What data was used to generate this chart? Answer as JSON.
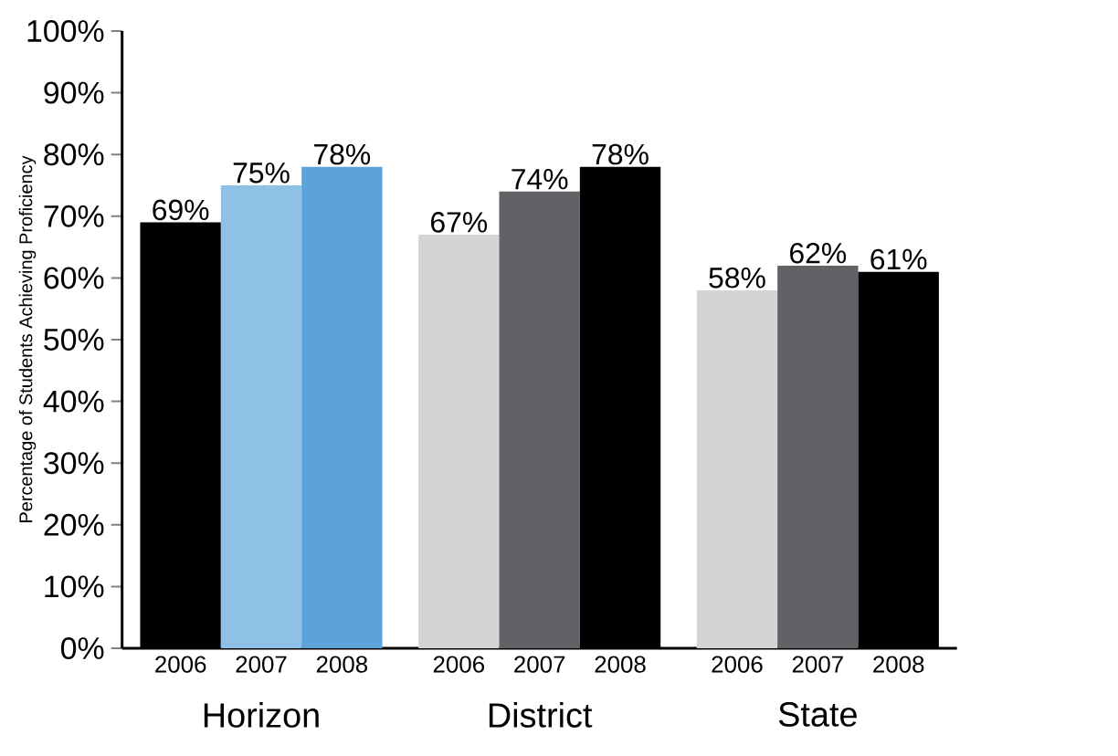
{
  "chart_data": {
    "type": "bar",
    "ylabel": "Percentage of Students Achieving Proficiency",
    "categories": [
      "Horizon",
      "District",
      "State"
    ],
    "series": [
      {
        "name": "2006",
        "colors": [
          "#000000",
          "#d4d4d4",
          "#d4d4d4"
        ],
        "values": [
          69,
          67,
          58
        ],
        "value_labels": [
          "69%",
          "67%",
          "58%"
        ]
      },
      {
        "name": "2007",
        "colors": [
          "#8fc1e6",
          "#616265",
          "#616265"
        ],
        "values": [
          75,
          74,
          62
        ],
        "value_labels": [
          "75%",
          "74%",
          "62%"
        ]
      },
      {
        "name": "2008",
        "colors": [
          "#5ba3d9",
          "#000000",
          "#000000"
        ],
        "values": [
          78,
          78,
          61
        ],
        "value_labels": [
          "78%",
          "78%",
          "61%"
        ]
      }
    ],
    "ylim": [
      0,
      100
    ],
    "yticks": [
      {
        "value": 0,
        "label": "0%"
      },
      {
        "value": 10,
        "label": "10%"
      },
      {
        "value": 20,
        "label": "20%"
      },
      {
        "value": 30,
        "label": "30%"
      },
      {
        "value": 40,
        "label": "40%"
      },
      {
        "value": 50,
        "label": "50%"
      },
      {
        "value": 60,
        "label": "60%"
      },
      {
        "value": 70,
        "label": "70%"
      },
      {
        "value": 80,
        "label": "80%"
      },
      {
        "value": 90,
        "label": "90%"
      },
      {
        "value": 100,
        "label": "100%"
      }
    ]
  }
}
